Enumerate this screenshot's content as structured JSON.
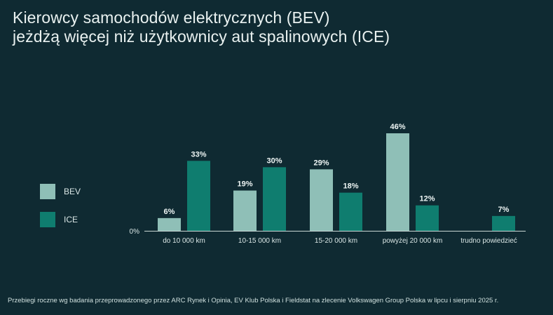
{
  "title_lines": [
    "Kierowcy samochodów elektrycznych (BEV)",
    "jeżdżą więcej niż użytkownicy aut spalinowych (ICE)"
  ],
  "legend": [
    {
      "name": "BEV",
      "color": "#8fbfb7"
    },
    {
      "name": "ICE",
      "color": "#0f7d6f"
    }
  ],
  "footnote": "Przebiegi roczne wg badania przeprowadzonego przez ARC Rynek i Opinia, EV Klub Polska i Fieldstat na zlecenie Volkswagen Group Polska w lipcu i sierpniu 2025 r.",
  "chart_data": {
    "type": "bar",
    "categories": [
      "do 10 000 km",
      "10-15 000 km",
      "15-20 000 km",
      "powyżej 20 000 km",
      "trudno powiedzieć"
    ],
    "series": [
      {
        "name": "BEV",
        "values": [
          6,
          19,
          29,
          46,
          null
        ],
        "labels": [
          "6%",
          "19%",
          "29%",
          "46%",
          ""
        ]
      },
      {
        "name": "ICE",
        "values": [
          33,
          30,
          18,
          12,
          7
        ],
        "labels": [
          "33%",
          "30%",
          "18%",
          "12%",
          "7%"
        ]
      }
    ],
    "y_zero_label": "0%",
    "ylim": [
      0,
      46
    ],
    "grid": false,
    "legend_position": "left"
  }
}
